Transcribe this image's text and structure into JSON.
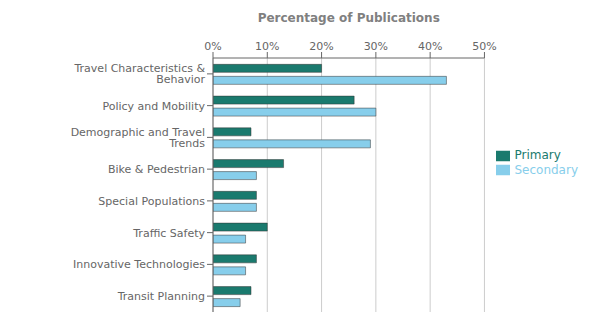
{
  "chart_data": {
    "type": "bar",
    "orientation": "horizontal",
    "xlabel": "Percentage of Publications",
    "categories": [
      "Travel Characteristics & Behavior",
      "Policy and Mobility",
      "Demographic and Travel Trends",
      "Bike & Pedestrian",
      "Special Populations",
      "Traffic Safety",
      "Innovative Technologies",
      "Transit Planning"
    ],
    "series": [
      {
        "name": "Primary",
        "color": "#1a7a6e",
        "values": [
          20,
          26,
          7,
          13,
          8,
          10,
          8,
          7
        ]
      },
      {
        "name": "Secondary",
        "color": "#87CEEB",
        "values": [
          43,
          30,
          29,
          8,
          8,
          6,
          6,
          5
        ]
      }
    ],
    "xlim": [
      0,
      50
    ],
    "xticks": [
      {
        "value": 0,
        "label": "0%"
      },
      {
        "value": 10,
        "label": "10%"
      },
      {
        "value": 20,
        "label": "20%"
      },
      {
        "value": 30,
        "label": "30%"
      },
      {
        "value": 40,
        "label": "40%"
      },
      {
        "value": 50,
        "label": "50%"
      }
    ],
    "grid": true,
    "legend": "right"
  }
}
